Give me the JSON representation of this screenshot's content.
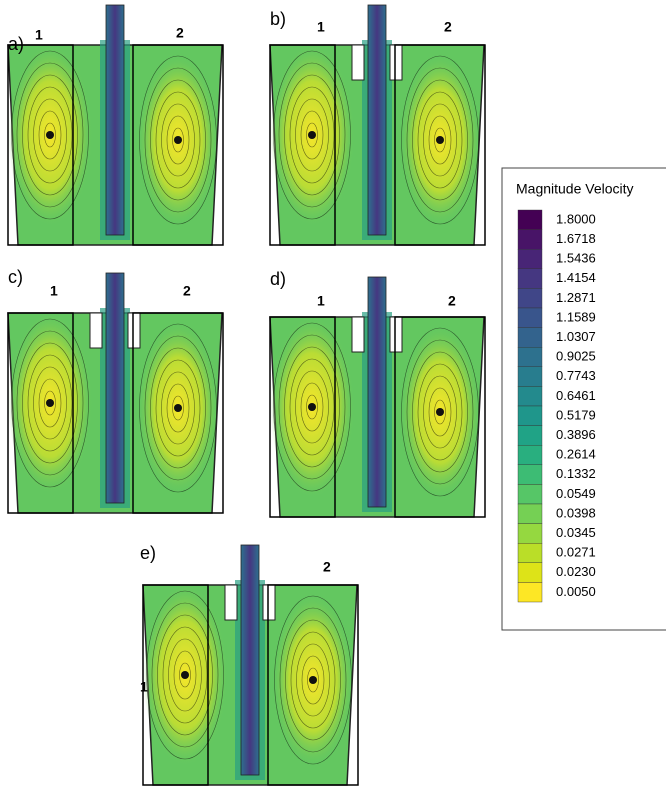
{
  "panels": [
    {
      "label": "a)",
      "regions": [
        "1",
        "2"
      ]
    },
    {
      "label": "b)",
      "regions": [
        "1",
        "2"
      ]
    },
    {
      "label": "c)",
      "regions": [
        "1",
        "2"
      ]
    },
    {
      "label": "d)",
      "regions": [
        "1",
        "2"
      ]
    },
    {
      "label": "e)",
      "regions": [
        "1",
        "2"
      ]
    }
  ],
  "legend": {
    "title": "Magnitude Velocity",
    "entries": [
      {
        "label": "1.8000",
        "color": "#440154"
      },
      {
        "label": "1.6718",
        "color": "#481467"
      },
      {
        "label": "1.5436",
        "color": "#482576"
      },
      {
        "label": "1.4154",
        "color": "#453781"
      },
      {
        "label": "1.2871",
        "color": "#404688"
      },
      {
        "label": "1.1589",
        "color": "#39558c"
      },
      {
        "label": "1.0307",
        "color": "#33638d"
      },
      {
        "label": "0.9025",
        "color": "#2d718e"
      },
      {
        "label": "0.7743",
        "color": "#287d8e"
      },
      {
        "label": "0.6461",
        "color": "#238a8d"
      },
      {
        "label": "0.5179",
        "color": "#1f968b"
      },
      {
        "label": "0.3896",
        "color": "#20a386"
      },
      {
        "label": "0.2614",
        "color": "#29af7f"
      },
      {
        "label": "0.1332",
        "color": "#3dbc74"
      },
      {
        "label": "0.0549",
        "color": "#56c667"
      },
      {
        "label": "0.0398",
        "color": "#75d054"
      },
      {
        "label": "0.0345",
        "color": "#95d840"
      },
      {
        "label": "0.0271",
        "color": "#bade28"
      },
      {
        "label": "0.0230",
        "color": "#dde318"
      },
      {
        "label": "0.0050",
        "color": "#fde725"
      }
    ]
  }
}
